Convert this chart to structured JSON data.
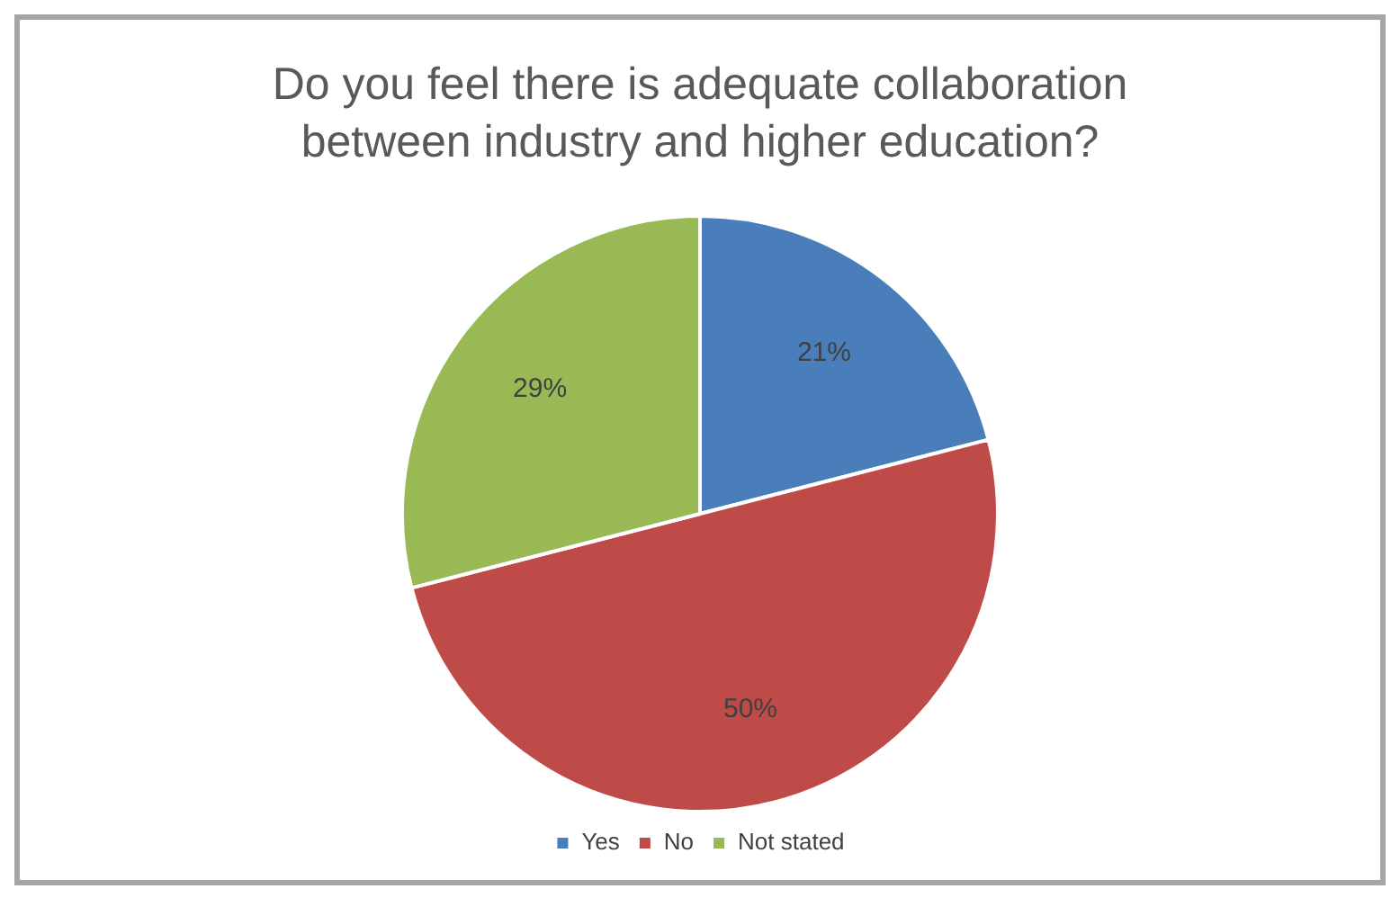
{
  "chart_data": {
    "type": "pie",
    "title": "Do you feel there is adequate collaboration between industry and higher education?",
    "categories": [
      "Yes",
      "No",
      "Not stated"
    ],
    "values": [
      21,
      50,
      29
    ],
    "colors": [
      "#4a7ebb",
      "#be4b48",
      "#98b954"
    ],
    "value_labels": [
      "21%",
      "50%",
      "29%"
    ],
    "legend": "bottom"
  }
}
